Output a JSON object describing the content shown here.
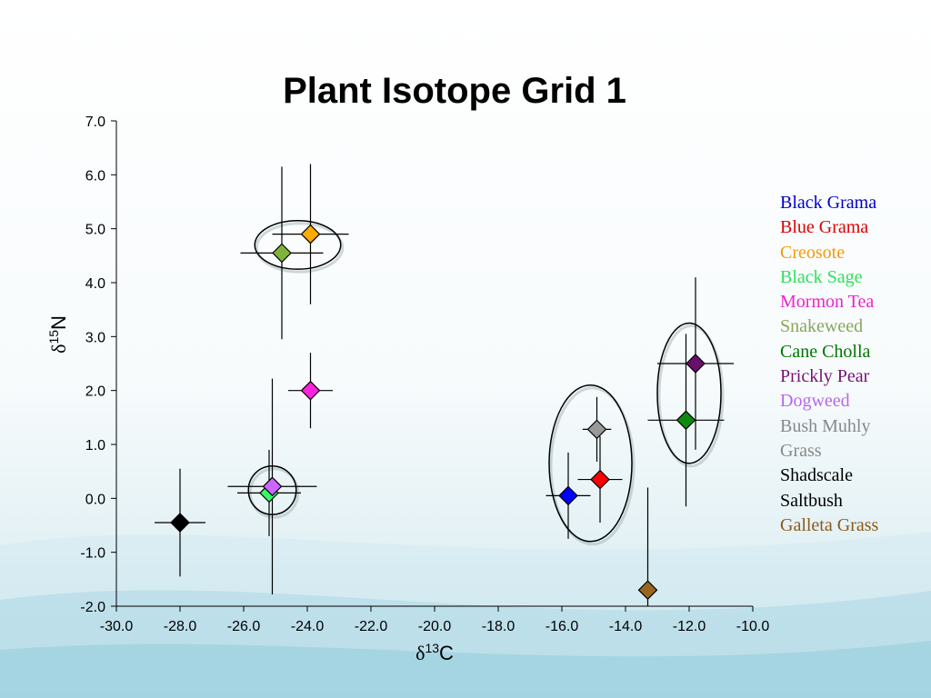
{
  "slide": {
    "title": "Plant Isotope Grid 1"
  },
  "chart_data": {
    "type": "scatter",
    "title": "Plant Isotope Grid 1",
    "xlabel": {
      "symbol": "δ",
      "sup": "13",
      "text": "C"
    },
    "ylabel": {
      "symbol": "δ",
      "sup": "15",
      "text": "N"
    },
    "xlim": [
      -30.0,
      -10.0
    ],
    "ylim": [
      -2.0,
      7.0
    ],
    "x_ticks": [
      "-30.0",
      "-28.0",
      "-26.0",
      "-24.0",
      "-22.0",
      "-20.0",
      "-18.0",
      "-16.0",
      "-14.0",
      "-12.0",
      "-10.0"
    ],
    "y_ticks": [
      "-2.0",
      "-1.0",
      "0.0",
      "1.0",
      "2.0",
      "3.0",
      "4.0",
      "5.0",
      "6.0",
      "7.0"
    ],
    "x_tick_values": [
      -30,
      -28,
      -26,
      -24,
      -22,
      -20,
      -18,
      -16,
      -14,
      -12,
      -10
    ],
    "y_tick_values": [
      -2,
      -1,
      0,
      1,
      2,
      3,
      4,
      5,
      6,
      7
    ],
    "grid": false,
    "legend_position": "right",
    "marker": "diamond",
    "series": [
      {
        "name": "Black Grama",
        "color": "#0000ff",
        "legend_color": "#0000cc",
        "x": -15.8,
        "y": 0.05,
        "xerr": 0.7,
        "yerr": [
          0.8,
          0.8
        ]
      },
      {
        "name": "Blue Grama",
        "color": "#ff0000",
        "legend_color": "#e00000",
        "x": -14.8,
        "y": 0.35,
        "xerr": 0.7,
        "yerr": [
          0.8,
          0.8
        ]
      },
      {
        "name": "Creosote",
        "color": "#ffaa00",
        "legend_color": "#f59b00",
        "x": -23.9,
        "y": 4.9,
        "xerr": 1.2,
        "yerr": [
          1.3,
          1.3
        ]
      },
      {
        "name": "Black Sage",
        "color": "#33ff66",
        "legend_color": "#2fe05a",
        "x": -25.2,
        "y": 0.1,
        "xerr": 1.0,
        "yerr": [
          0.8,
          0.8
        ]
      },
      {
        "name": "Mormon Tea",
        "color": "#ff22dd",
        "legend_color": "#ee22cc",
        "x": -23.9,
        "y": 2.0,
        "xerr": 0.7,
        "yerr": [
          0.7,
          0.7
        ]
      },
      {
        "name": "Snakeweed",
        "color": "#80b33c",
        "legend_color": "#8aa55a",
        "x": -24.8,
        "y": 4.55,
        "xerr": 1.3,
        "yerr": [
          1.6,
          1.6
        ]
      },
      {
        "name": "Cane Cholla",
        "color": "#118811",
        "legend_color": "#007700",
        "x": -12.1,
        "y": 1.45,
        "xerr": 1.2,
        "yerr": [
          1.6,
          1.6
        ]
      },
      {
        "name": "Prickly Pear",
        "color": "#6a0f6a",
        "legend_color": "#771177",
        "x": -11.8,
        "y": 2.5,
        "xerr": 1.2,
        "yerr": [
          1.6,
          1.6
        ]
      },
      {
        "name": "Dogweed",
        "color": "#cc66ff",
        "legend_color": "#bb66ee",
        "x": -25.1,
        "y": 0.22,
        "xerr": 1.4,
        "yerr": [
          2.0,
          2.0
        ]
      },
      {
        "name": "Bush Muhly",
        "color": "#999999",
        "legend_color": "#888888",
        "x": -14.9,
        "y": 1.28,
        "xerr": 0.45,
        "yerr": [
          0.6,
          0.6
        ]
      },
      {
        "name": "Grass",
        "color": "#999999",
        "legend_color": "#888888",
        "x": null,
        "y": null,
        "xerr": 0,
        "yerr": [
          0,
          0
        ]
      },
      {
        "name": "Shadscale",
        "color": "#000000",
        "legend_color": "#000000",
        "x": -28.0,
        "y": -0.45,
        "xerr": 0.8,
        "yerr": [
          1.0,
          1.0
        ]
      },
      {
        "name": "Saltbush",
        "color": "#000000",
        "legend_color": "#000000",
        "x": null,
        "y": null,
        "xerr": 0,
        "yerr": [
          0,
          0
        ]
      },
      {
        "name": "Galleta Grass",
        "color": "#996622",
        "legend_color": "#8b5a1a",
        "x": -13.3,
        "y": -1.7,
        "xerr": 0.3,
        "yerr": [
          0.3,
          1.9
        ]
      }
    ],
    "ellipses": [
      {
        "name": "creosote-snakeweed-cluster",
        "cx": -24.3,
        "cy": 4.7,
        "rx": 1.35,
        "ry": 0.45
      },
      {
        "name": "dogweed-blacksage-cluster",
        "cx": -25.1,
        "cy": 0.15,
        "rx": 0.75,
        "ry": 0.45
      },
      {
        "name": "grama-muhly-cluster",
        "cx": -15.1,
        "cy": 0.65,
        "rx": 1.3,
        "ry": 1.45
      },
      {
        "name": "cactus-cluster",
        "cx": -12.0,
        "cy": 1.95,
        "rx": 1.0,
        "ry": 1.3
      }
    ]
  }
}
